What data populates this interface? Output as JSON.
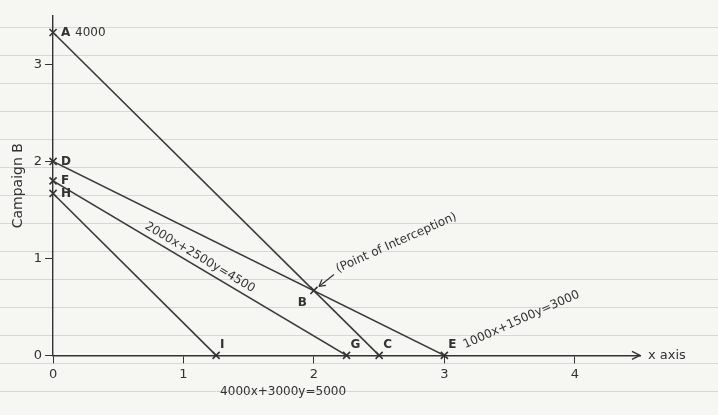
{
  "chart_data": {
    "type": "line",
    "x_label": "x axis",
    "y_label": "Campaign B",
    "xlim": [
      0,
      4.5
    ],
    "ylim": [
      0,
      3.5
    ],
    "xticks": [
      0,
      1,
      2,
      3,
      4
    ],
    "yticks": [
      0,
      1,
      2,
      3
    ],
    "grid": false,
    "color": "#333333",
    "series": [
      {
        "name": "4000",
        "color": "#3a3a3a",
        "x": [
          0,
          2.5
        ],
        "values": [
          3.33,
          0
        ]
      },
      {
        "name": "2000x+2500y=4500",
        "color": "#3a3a3a",
        "x": [
          0,
          2.25
        ],
        "values": [
          1.8,
          0
        ]
      },
      {
        "name": "1000x+1500y=3000",
        "color": "#3a3a3a",
        "x": [
          0,
          3
        ],
        "values": [
          2,
          0
        ]
      },
      {
        "name": "4000x+3000y=5000",
        "color": "#3a3a3a",
        "x": [
          0,
          1.25
        ],
        "values": [
          1.67,
          0
        ]
      }
    ],
    "points": [
      {
        "label": "A",
        "x": 0,
        "y": 3.33
      },
      {
        "label": "B",
        "x": 2,
        "y": 0.67
      },
      {
        "label": "C",
        "x": 2.5,
        "y": 0
      },
      {
        "label": "D",
        "x": 0,
        "y": 2
      },
      {
        "label": "E",
        "x": 3,
        "y": 0
      },
      {
        "label": "F",
        "x": 0,
        "y": 1.8
      },
      {
        "label": "G",
        "x": 2.25,
        "y": 0
      },
      {
        "label": "H",
        "x": 0,
        "y": 1.67
      },
      {
        "label": "I",
        "x": 1.25,
        "y": 0
      }
    ],
    "annotations": [
      {
        "text": "(Point of Interception)",
        "point": "B"
      }
    ]
  }
}
